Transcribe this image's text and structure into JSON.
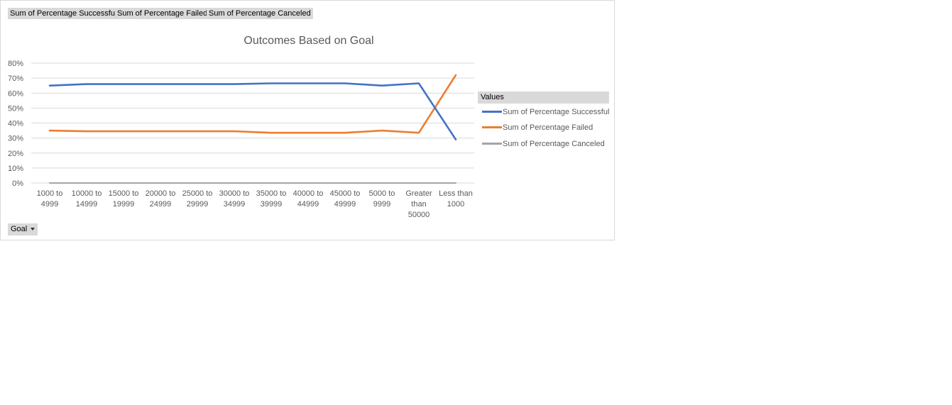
{
  "field_buttons": [
    {
      "label": "Sum of Percentage Successful"
    },
    {
      "label": "Sum of Percentage Failed"
    },
    {
      "label": "Sum of Percentage Canceled"
    }
  ],
  "axis_button": {
    "label": "Goal"
  },
  "legend": {
    "header": "Values"
  },
  "chart_data": {
    "type": "line",
    "title": "Outcomes Based on Goal",
    "xlabel": "",
    "ylabel": "",
    "categories": [
      [
        "1000 to",
        "4999"
      ],
      [
        "10000 to",
        "14999"
      ],
      [
        "15000 to",
        "19999"
      ],
      [
        "20000 to",
        "24999"
      ],
      [
        "25000 to",
        "29999"
      ],
      [
        "30000 to",
        "34999"
      ],
      [
        "35000 to",
        "39999"
      ],
      [
        "40000 to",
        "44999"
      ],
      [
        "45000 to",
        "49999"
      ],
      [
        "5000 to",
        "9999"
      ],
      [
        "Greater",
        "than",
        "50000"
      ],
      [
        "Less than",
        "1000"
      ]
    ],
    "ylim": [
      0,
      0.8
    ],
    "yticks": [
      "0%",
      "10%",
      "20%",
      "30%",
      "40%",
      "50%",
      "60%",
      "70%",
      "80%"
    ],
    "grid": true,
    "legend_position": "right",
    "series": [
      {
        "name": "Sum of Percentage Successful",
        "color": "#4472c4",
        "values": [
          0.65,
          0.66,
          0.66,
          0.66,
          0.66,
          0.66,
          0.665,
          0.665,
          0.665,
          0.65,
          0.665,
          0.29
        ]
      },
      {
        "name": "Sum of Percentage Failed",
        "color": "#ed7d31",
        "values": [
          0.35,
          0.345,
          0.345,
          0.345,
          0.345,
          0.345,
          0.335,
          0.335,
          0.335,
          0.35,
          0.335,
          0.72
        ]
      },
      {
        "name": "Sum of Percentage Canceled",
        "color": "#a5a5a5",
        "values": [
          0,
          0,
          0,
          0,
          0,
          0,
          0,
          0,
          0,
          0,
          0,
          0
        ]
      }
    ]
  }
}
